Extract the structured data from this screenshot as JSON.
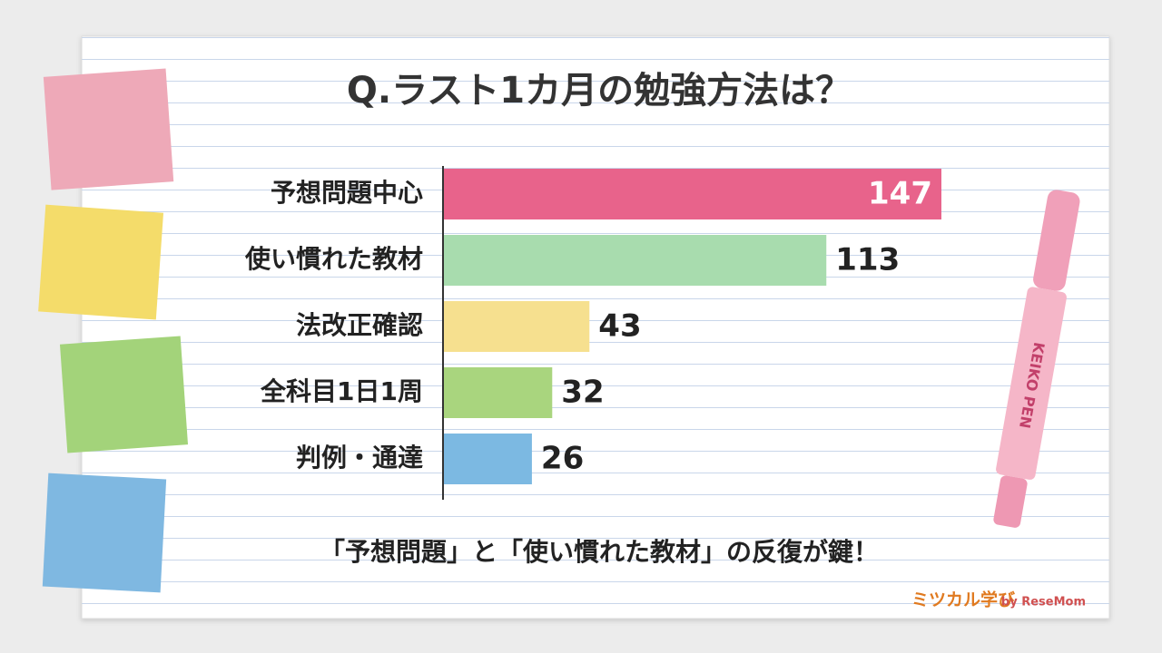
{
  "chart_data": {
    "type": "barh",
    "title": "Q.ラスト1カ月の勉強方法は？",
    "categories": [
      "予想問題中心",
      "使い慣れた教材",
      "法改正確認",
      "全科目1日1周",
      "判例・通達"
    ],
    "values": [
      147,
      113,
      43,
      32,
      26
    ],
    "colors": [
      "#e8638b",
      "#a8dcae",
      "#f6e08f",
      "#a9d57e",
      "#7cb9e2"
    ],
    "caption": "「予想問題」と「使い慣れた教材」の反復が鍵！",
    "pen_label": "KEIKO PEN",
    "logo": "ミツカル学び",
    "logo_by": "by ReseMom"
  }
}
